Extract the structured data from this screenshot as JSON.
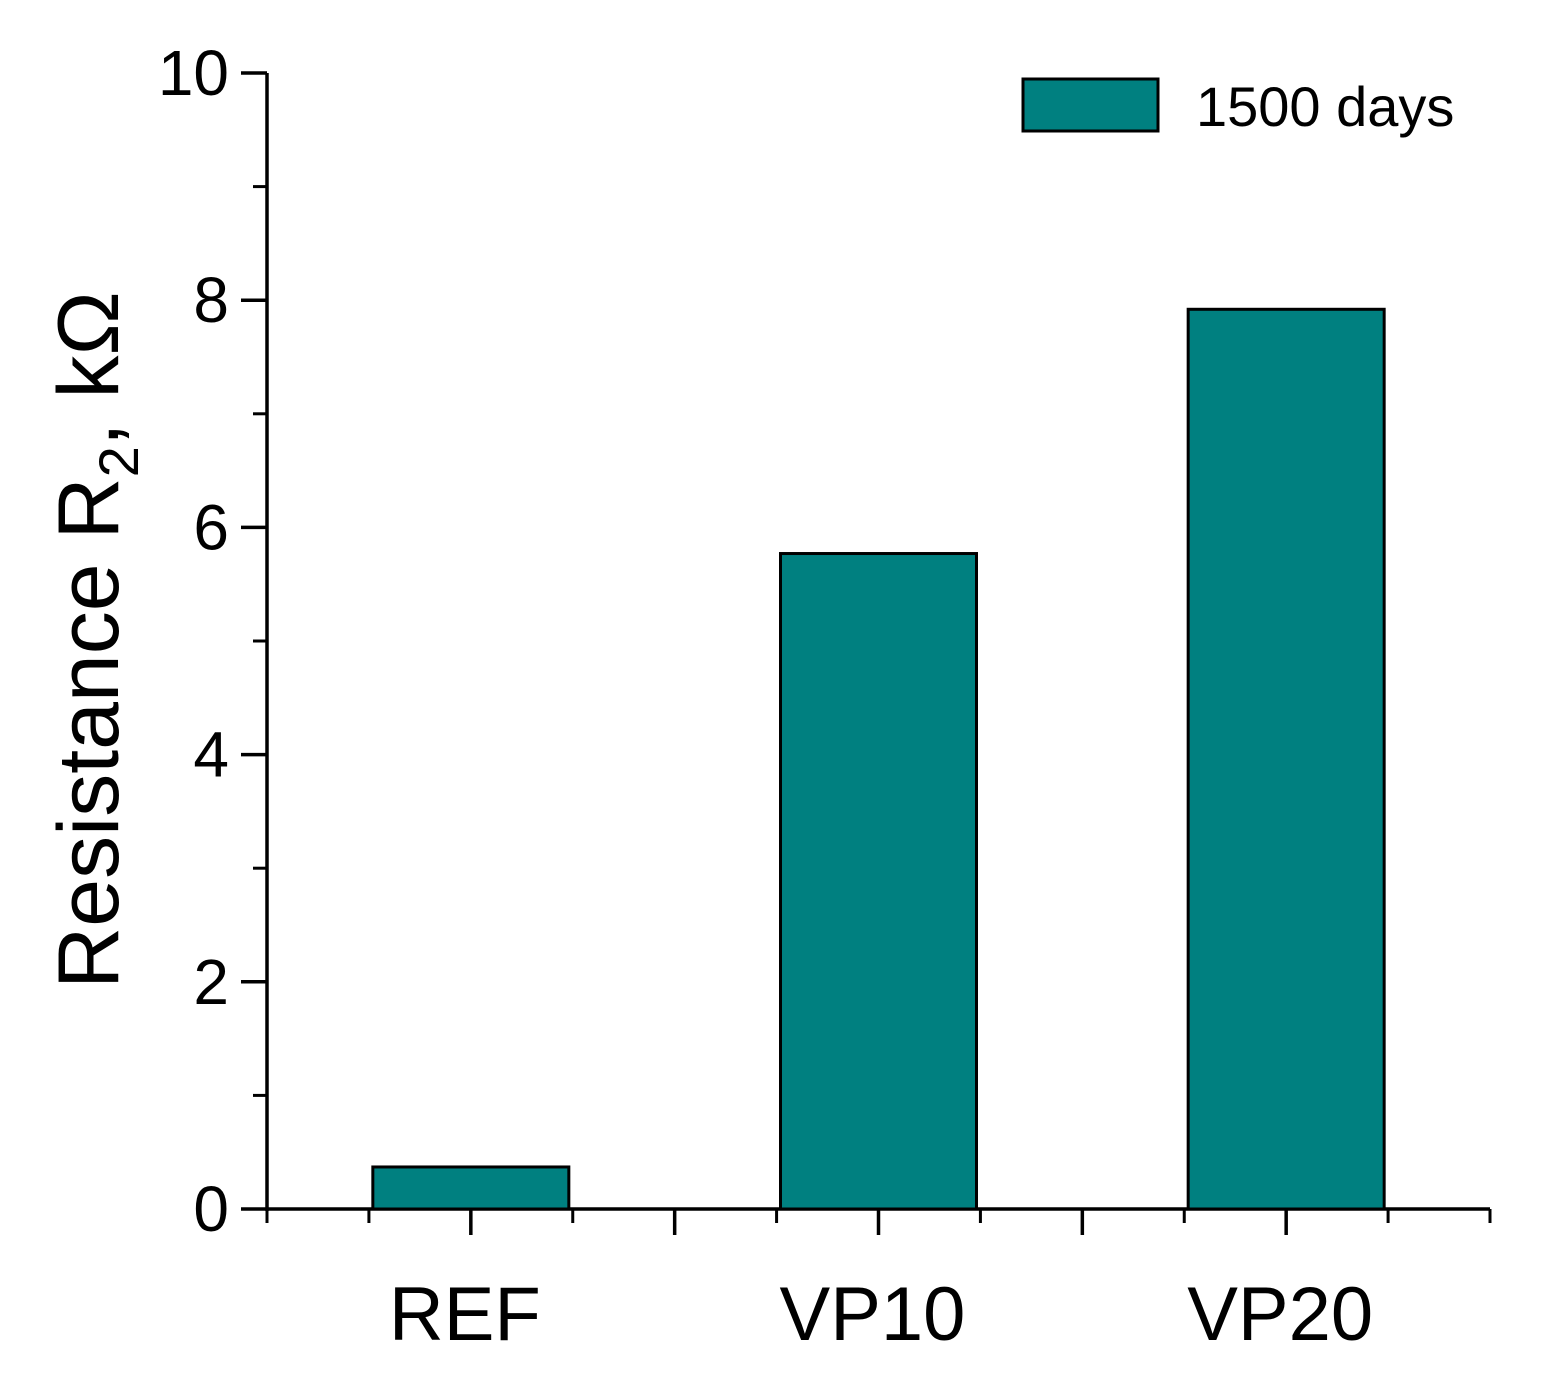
{
  "chart_data": {
    "type": "bar",
    "title": "",
    "categories": [
      "REF",
      "VP10",
      "VP20"
    ],
    "series": [
      {
        "name": "1500 days",
        "values": [
          0.37,
          5.77,
          7.92
        ],
        "color": "#008080"
      }
    ],
    "xlabel": "",
    "ylabel": {
      "main": "Resistance R",
      "subscript": "2",
      "unit": ", kΩ"
    },
    "ylim": [
      0,
      10
    ],
    "yticks": [
      0,
      2,
      4,
      6,
      8,
      10
    ],
    "grid": false,
    "legend_position": "top-right"
  }
}
